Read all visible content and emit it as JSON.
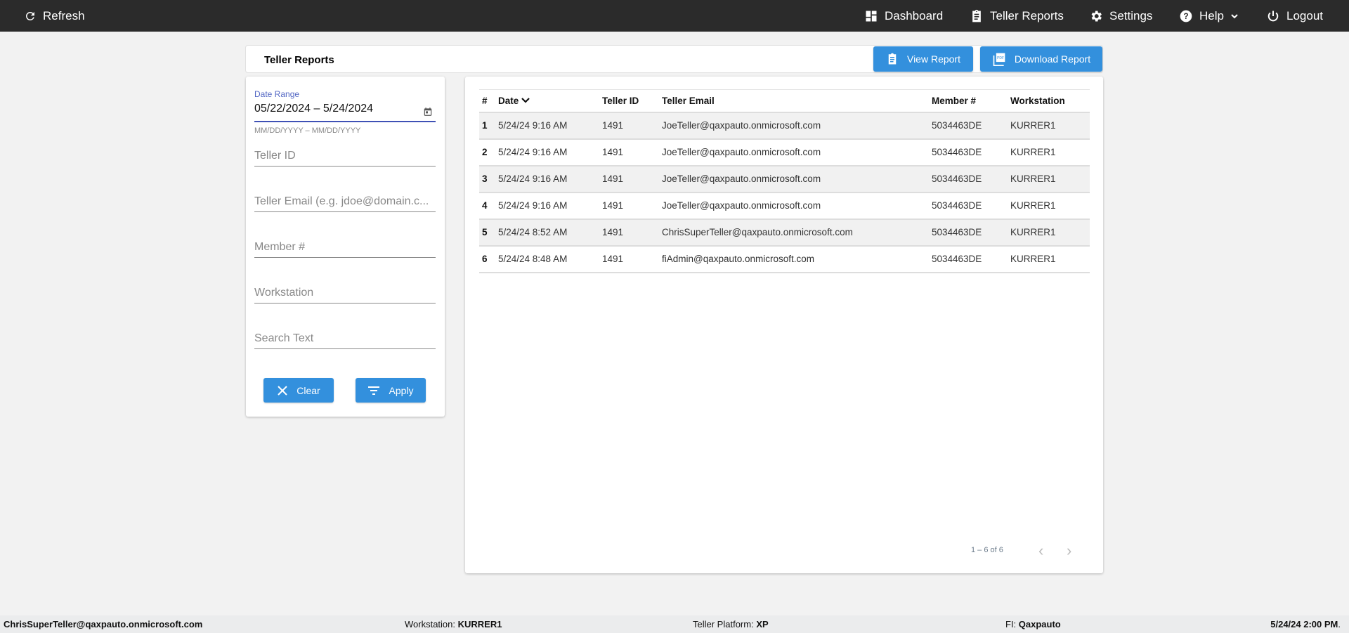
{
  "topbar": {
    "refresh": "Refresh",
    "nav": [
      {
        "label": "Dashboard",
        "icon": "dashboard-icon"
      },
      {
        "label": "Teller Reports",
        "icon": "clipboard-icon"
      },
      {
        "label": "Settings",
        "icon": "gear-icon"
      },
      {
        "label": "Help",
        "icon": "help-icon"
      },
      {
        "label": "Logout",
        "icon": "power-icon"
      }
    ]
  },
  "page": {
    "title": "Teller Reports",
    "view_report": "View Report",
    "download_report": "Download Report"
  },
  "filters": {
    "date_range_label": "Date Range",
    "date_start": "05/22/2024",
    "date_sep": " – ",
    "date_end": "5/24/2024",
    "date_hint": "MM/DD/YYYY – MM/DD/YYYY",
    "teller_id_placeholder": "Teller ID",
    "teller_email_placeholder": "Teller Email (e.g. jdoe@domain.c...",
    "member_placeholder": "Member #",
    "workstation_placeholder": "Workstation",
    "search_placeholder": "Search Text",
    "clear": "Clear",
    "apply": "Apply"
  },
  "table": {
    "columns": [
      "#",
      "Date",
      "Teller ID",
      "Teller Email",
      "Member #",
      "Workstation"
    ],
    "rows": [
      [
        "1",
        "5/24/24 9:16 AM",
        "1491",
        "JoeTeller@qaxpauto.onmicrosoft.com",
        "5034463DE",
        "KURRER1"
      ],
      [
        "2",
        "5/24/24 9:16 AM",
        "1491",
        "JoeTeller@qaxpauto.onmicrosoft.com",
        "5034463DE",
        "KURRER1"
      ],
      [
        "3",
        "5/24/24 9:16 AM",
        "1491",
        "JoeTeller@qaxpauto.onmicrosoft.com",
        "5034463DE",
        "KURRER1"
      ],
      [
        "4",
        "5/24/24 9:16 AM",
        "1491",
        "JoeTeller@qaxpauto.onmicrosoft.com",
        "5034463DE",
        "KURRER1"
      ],
      [
        "5",
        "5/24/24 8:52 AM",
        "1491",
        "ChrisSuperTeller@qaxpauto.onmicrosoft.com",
        "5034463DE",
        "KURRER1"
      ],
      [
        "6",
        "5/24/24 8:48 AM",
        "1491",
        "fiAdmin@qaxpauto.onmicrosoft.com",
        "5034463DE",
        "KURRER1"
      ]
    ],
    "pagination": "1 – 6 of 6"
  },
  "footer": {
    "user": "ChrisSuperTeller@qaxpauto.onmicrosoft.com",
    "workstation_label": "Workstation: ",
    "workstation": "KURRER1",
    "platform_label": "Teller Platform: ",
    "platform": "XP",
    "fi_label": "FI: ",
    "fi": "Qaxpauto",
    "datetime": "5/24/24 2:00 PM",
    "datetime_suffix": "."
  },
  "colors": {
    "topbar": "#2b2b2b",
    "accent": "#3390dd",
    "focus": "#3f51b5"
  }
}
